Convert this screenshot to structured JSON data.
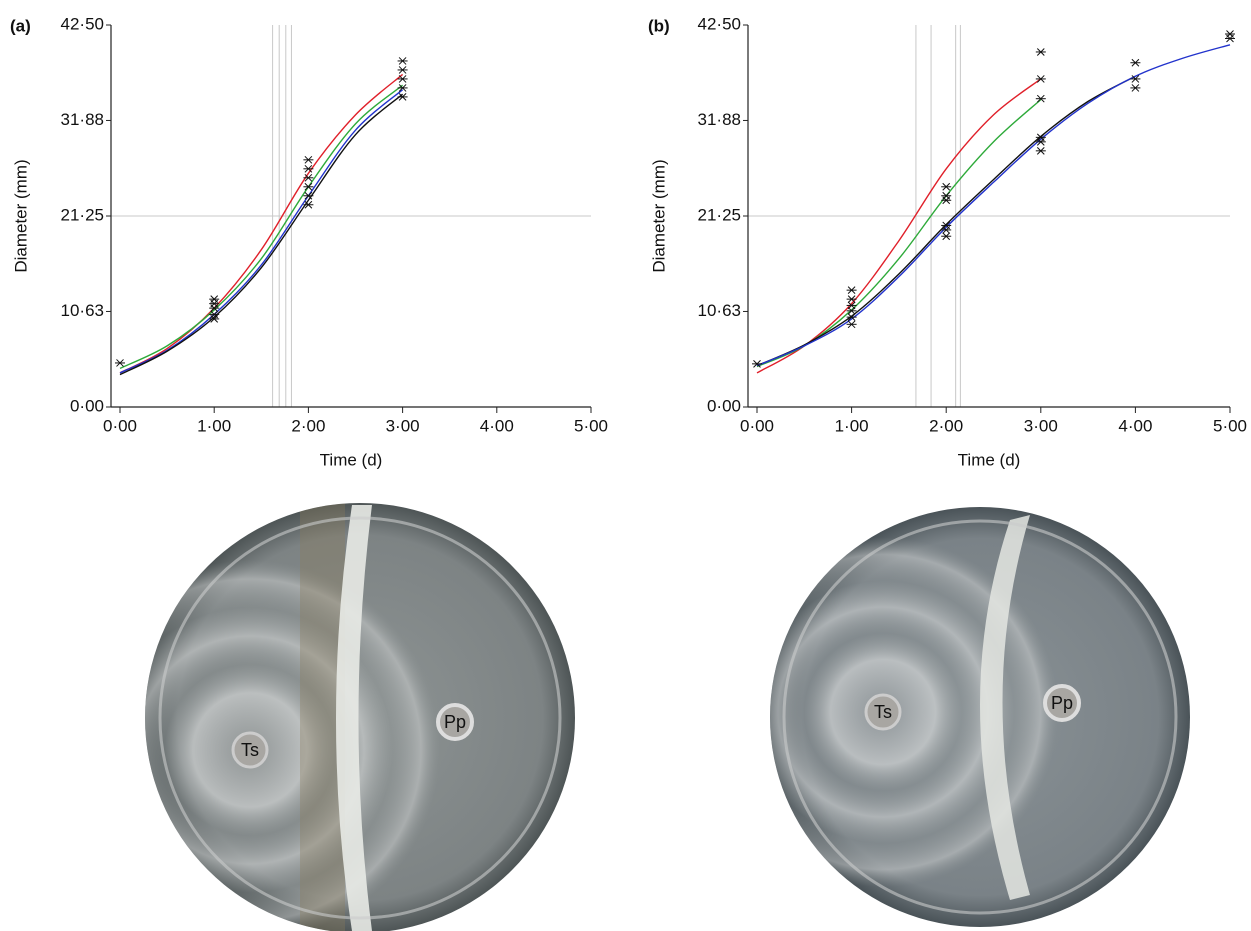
{
  "chart_data": [
    {
      "type": "line",
      "label": "(a)",
      "ylabel": "Diameter (mm)",
      "xlabel": "Time (d)",
      "x": [
        0,
        0.5,
        1,
        1.5,
        2,
        2.5,
        3
      ],
      "series": [
        {
          "color": "#e0202a",
          "values": [
            3.8,
            6.5,
            11,
            17.5,
            26,
            32.5,
            37
          ]
        },
        {
          "color": "#2eaa3a",
          "values": [
            4.3,
            6.8,
            10.8,
            16.5,
            24.5,
            31.5,
            35.8
          ]
        },
        {
          "color": "#2233cc",
          "values": [
            3.8,
            6.3,
            10.3,
            15.8,
            23.5,
            30.8,
            35.3
          ]
        },
        {
          "color": "#111111",
          "values": [
            3.6,
            6.2,
            10,
            15.5,
            23,
            30.3,
            34.8
          ]
        }
      ],
      "points": {
        "x": [
          0,
          1,
          1,
          1,
          1,
          1,
          2,
          2,
          2,
          2,
          2,
          2,
          3,
          3,
          3,
          3,
          3
        ],
        "y": [
          4.9,
          9.8,
          10.3,
          11,
          11.5,
          12,
          22.5,
          23.5,
          24.5,
          25.5,
          26.5,
          27.5,
          34.5,
          35.5,
          36.5,
          37.5,
          38.5
        ],
        "color": "#111111"
      },
      "vlines": [
        1.62,
        1.69,
        1.76,
        1.82
      ],
      "hline": 21.25,
      "xlim": [
        0,
        5
      ],
      "ylim": [
        0,
        42.5
      ],
      "xticks": [
        {
          "value": 0,
          "label": "0·00"
        },
        {
          "value": 1,
          "label": "1·00"
        },
        {
          "value": 2,
          "label": "2·00"
        },
        {
          "value": 3,
          "label": "3·00"
        },
        {
          "value": 4,
          "label": "4·00"
        },
        {
          "value": 5,
          "label": "5·00"
        }
      ],
      "yticks": [
        {
          "value": 0,
          "label": "0·00"
        },
        {
          "value": 10.63,
          "label": "10·63"
        },
        {
          "value": 21.25,
          "label": "21·25"
        },
        {
          "value": 31.88,
          "label": "31·88"
        },
        {
          "value": 42.5,
          "label": "42·50"
        }
      ]
    },
    {
      "type": "line",
      "label": "(b)",
      "ylabel": "Diameter (mm)",
      "xlabel": "Time (d)",
      "x": [
        0,
        0.5,
        1,
        1.5,
        2,
        2.5,
        3,
        3.5,
        4,
        4.5,
        5
      ],
      "series": [
        {
          "color": "#e0202a",
          "values": [
            3.8,
            6.8,
            11.5,
            18.5,
            26.5,
            32.5,
            36.5,
            null,
            null,
            null,
            null
          ]
        },
        {
          "color": "#2eaa3a",
          "values": [
            4.5,
            6.8,
            10.8,
            16.5,
            23.5,
            29.5,
            34.2,
            null,
            null,
            null,
            null
          ]
        },
        {
          "color": "#111111",
          "values": [
            4.6,
            6.9,
            10.1,
            14.8,
            20.3,
            25.3,
            30.1,
            34,
            36.8,
            null,
            null
          ]
        },
        {
          "color": "#2233cc",
          "values": [
            4.6,
            6.8,
            9.8,
            14.5,
            20,
            25,
            29.8,
            33.8,
            36.8,
            38.8,
            40.3
          ]
        }
      ],
      "points": {
        "x": [
          0,
          1,
          1,
          1,
          1,
          1,
          1,
          2,
          2,
          2,
          2,
          2,
          2,
          3,
          3,
          3,
          3,
          3,
          3,
          4,
          4,
          4,
          5,
          5
        ],
        "y": [
          4.8,
          9.2,
          10,
          10.7,
          11.3,
          12,
          13,
          19,
          19.7,
          20.2,
          23,
          23.5,
          24.5,
          28.5,
          29.5,
          30,
          34.3,
          36.5,
          39.5,
          35.5,
          36.5,
          38.3,
          41,
          41.5
        ],
        "color": "#111111"
      },
      "vlines": [
        1.68,
        1.84,
        2.1,
        2.15
      ],
      "hline": 21.25,
      "xlim": [
        0,
        5
      ],
      "ylim": [
        0,
        42.5
      ],
      "xticks": [
        {
          "value": 0,
          "label": "0·00"
        },
        {
          "value": 1,
          "label": "1·00"
        },
        {
          "value": 2,
          "label": "2·00"
        },
        {
          "value": 3,
          "label": "3·00"
        },
        {
          "value": 4,
          "label": "4·00"
        },
        {
          "value": 5,
          "label": "5·00"
        }
      ],
      "yticks": [
        {
          "value": 0,
          "label": "0·00"
        },
        {
          "value": 10.63,
          "label": "10·63"
        },
        {
          "value": 21.25,
          "label": "21·25"
        },
        {
          "value": 31.88,
          "label": "31·88"
        },
        {
          "value": 42.5,
          "label": "42·50"
        }
      ]
    }
  ],
  "plates": [
    {
      "left": "Ts",
      "right": "Pp"
    },
    {
      "left": "Ts",
      "right": "Pp"
    }
  ]
}
